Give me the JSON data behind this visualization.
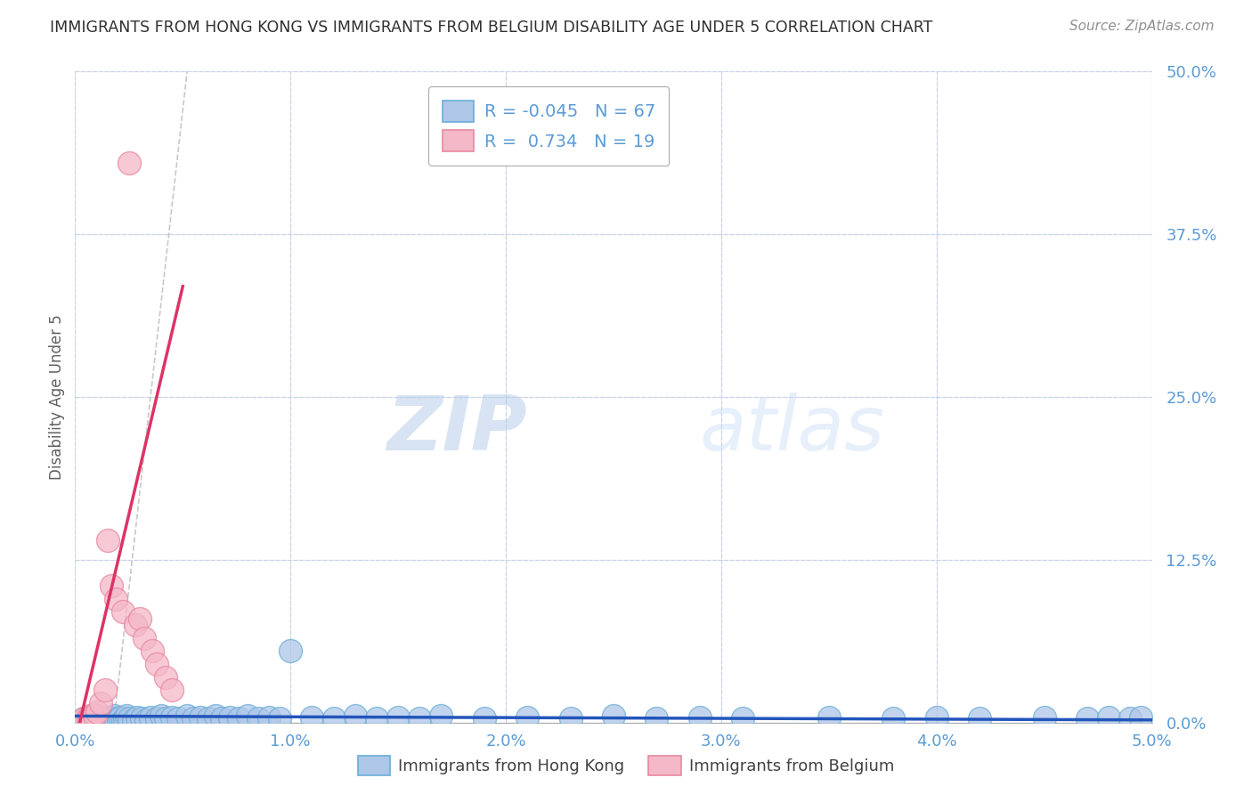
{
  "title": "IMMIGRANTS FROM HONG KONG VS IMMIGRANTS FROM BELGIUM DISABILITY AGE UNDER 5 CORRELATION CHART",
  "source_text": "Source: ZipAtlas.com",
  "ylabel": "Disability Age Under 5",
  "x_tick_labels": [
    "0.0%",
    "1.0%",
    "2.0%",
    "3.0%",
    "4.0%",
    "5.0%"
  ],
  "x_tick_values": [
    0.0,
    1.0,
    2.0,
    3.0,
    4.0,
    5.0
  ],
  "y_tick_labels": [
    "0.0%",
    "12.5%",
    "25.0%",
    "37.5%",
    "50.0%"
  ],
  "y_tick_values": [
    0.0,
    12.5,
    25.0,
    37.5,
    50.0
  ],
  "xlim": [
    0.0,
    5.0
  ],
  "ylim": [
    0.0,
    50.0
  ],
  "hk_color": "#aec6e8",
  "hk_edge_color": "#6aaed6",
  "be_color": "#f4b8c8",
  "be_edge_color": "#e888a0",
  "hk_line_color": "#2255bb",
  "be_line_color": "#dd3366",
  "hk_R": -0.045,
  "hk_N": 67,
  "be_R": 0.734,
  "be_N": 19,
  "watermark_zip": "ZIP",
  "watermark_atlas": "atlas",
  "legend_label_hk": "Immigrants from Hong Kong",
  "legend_label_be": "Immigrants from Belgium",
  "background_color": "#ffffff",
  "grid_color": "#c8d4e8",
  "title_color": "#303030",
  "axis_label_color": "#5b9bd5",
  "ref_line_color": "#bbbbbb",
  "hk_x": [
    0.04,
    0.06,
    0.07,
    0.08,
    0.09,
    0.1,
    0.11,
    0.12,
    0.13,
    0.14,
    0.15,
    0.16,
    0.17,
    0.18,
    0.19,
    0.2,
    0.21,
    0.22,
    0.23,
    0.24,
    0.25,
    0.27,
    0.29,
    0.31,
    0.33,
    0.35,
    0.38,
    0.4,
    0.42,
    0.45,
    0.48,
    0.52,
    0.55,
    0.58,
    0.62,
    0.65,
    0.68,
    0.72,
    0.76,
    0.8,
    0.85,
    0.9,
    0.95,
    1.0,
    1.1,
    1.2,
    1.3,
    1.4,
    1.5,
    1.6,
    1.7,
    1.9,
    2.1,
    2.3,
    2.5,
    2.7,
    2.9,
    3.1,
    3.5,
    3.8,
    4.0,
    4.2,
    4.5,
    4.7,
    4.8,
    4.9,
    4.95
  ],
  "hk_y": [
    0.3,
    0.2,
    0.4,
    0.2,
    0.3,
    0.5,
    0.3,
    0.2,
    0.4,
    0.3,
    0.2,
    0.4,
    0.3,
    0.5,
    0.2,
    0.3,
    0.4,
    0.2,
    0.3,
    0.5,
    0.3,
    0.2,
    0.4,
    0.3,
    0.2,
    0.4,
    0.3,
    0.5,
    0.3,
    0.4,
    0.3,
    0.5,
    0.3,
    0.4,
    0.3,
    0.5,
    0.3,
    0.4,
    0.3,
    0.5,
    0.3,
    0.4,
    0.3,
    5.5,
    0.4,
    0.3,
    0.5,
    0.3,
    0.4,
    0.3,
    0.5,
    0.3,
    0.4,
    0.3,
    0.5,
    0.3,
    0.4,
    0.3,
    0.4,
    0.3,
    0.4,
    0.3,
    0.4,
    0.3,
    0.4,
    0.3,
    0.4
  ],
  "be_x": [
    0.04,
    0.06,
    0.07,
    0.09,
    0.1,
    0.12,
    0.14,
    0.15,
    0.17,
    0.19,
    0.22,
    0.25,
    0.28,
    0.3,
    0.32,
    0.36,
    0.38,
    0.42,
    0.45
  ],
  "be_y": [
    0.3,
    0.4,
    0.5,
    0.6,
    0.8,
    1.5,
    2.5,
    14.0,
    10.5,
    9.5,
    8.5,
    43.0,
    7.5,
    8.0,
    6.5,
    5.5,
    4.5,
    3.5,
    2.5
  ]
}
